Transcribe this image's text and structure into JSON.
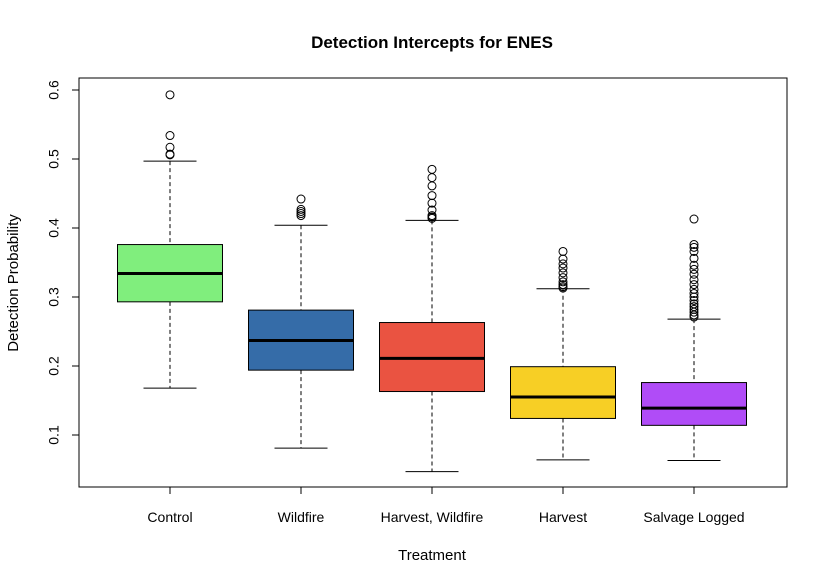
{
  "chart_data": {
    "type": "boxplot",
    "title": "Detection Intercepts for ENES",
    "xlabel": "Treatment",
    "ylabel": "Detection Probability",
    "ylim": [
      0.03,
      0.62
    ],
    "yticks": [
      0.1,
      0.2,
      0.3,
      0.4,
      0.5,
      0.6
    ],
    "ytick_labels": [
      "0.1",
      "0.2",
      "0.3",
      "0.4",
      "0.5",
      "0.6"
    ],
    "grid": false,
    "categories": [
      "Control",
      "Wildfire",
      "Harvest, Wildfire",
      "Harvest",
      "Salvage Logged"
    ],
    "boxes": [
      {
        "category": "Control",
        "color": "#80EE7D",
        "whisker_low": 0.168,
        "q1": 0.293,
        "median": 0.334,
        "q3": 0.376,
        "whisker_high": 0.497,
        "outliers": [
          0.506,
          0.507,
          0.517,
          0.534,
          0.593
        ]
      },
      {
        "category": "Wildfire",
        "color": "#356CA8",
        "whisker_low": 0.081,
        "q1": 0.194,
        "median": 0.237,
        "q3": 0.281,
        "whisker_high": 0.404,
        "outliers": [
          0.418,
          0.421,
          0.424,
          0.427,
          0.442
        ]
      },
      {
        "category": "Harvest, Wildfire",
        "color": "#EA5341",
        "whisker_low": 0.047,
        "q1": 0.163,
        "median": 0.211,
        "q3": 0.263,
        "whisker_high": 0.411,
        "outliers": [
          0.414,
          0.416,
          0.418,
          0.426,
          0.436,
          0.447,
          0.461,
          0.473,
          0.485
        ]
      },
      {
        "category": "Harvest",
        "color": "#F7CF25",
        "whisker_low": 0.064,
        "q1": 0.124,
        "median": 0.155,
        "q3": 0.199,
        "whisker_high": 0.312,
        "outliers": [
          0.313,
          0.315,
          0.318,
          0.322,
          0.328,
          0.335,
          0.342,
          0.348,
          0.355,
          0.366
        ]
      },
      {
        "category": "Salvage Logged",
        "color": "#B04CF7",
        "whisker_low": 0.063,
        "q1": 0.114,
        "median": 0.139,
        "q3": 0.176,
        "whisker_high": 0.268,
        "outliers": [
          0.271,
          0.274,
          0.278,
          0.282,
          0.286,
          0.29,
          0.295,
          0.3,
          0.305,
          0.311,
          0.318,
          0.325,
          0.333,
          0.34,
          0.346,
          0.356,
          0.366,
          0.372,
          0.376,
          0.413
        ]
      }
    ]
  }
}
